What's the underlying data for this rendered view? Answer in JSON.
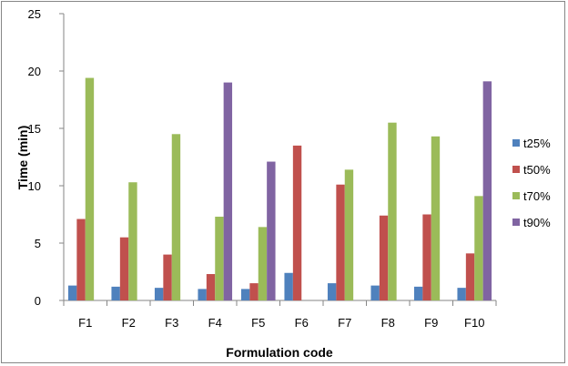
{
  "chart_data": {
    "type": "bar",
    "title": "",
    "xlabel": "Formulation code",
    "ylabel": "Time (min)",
    "ylim": [
      0,
      25
    ],
    "yticks": [
      0,
      5,
      10,
      15,
      20,
      25
    ],
    "grid": false,
    "legend_position": "right",
    "categories": [
      "F1",
      "F2",
      "F3",
      "F4",
      "F5",
      "F6",
      "F7",
      "F8",
      "F9",
      "F10"
    ],
    "series": [
      {
        "name": "t25%",
        "color": "#4F81BD",
        "values": [
          1.3,
          1.2,
          1.1,
          1.0,
          1.0,
          2.4,
          1.5,
          1.3,
          1.2,
          1.1
        ]
      },
      {
        "name": "t50%",
        "color": "#C0504D",
        "values": [
          7.1,
          5.5,
          4.0,
          2.3,
          1.5,
          13.5,
          10.1,
          7.4,
          7.5,
          4.1
        ]
      },
      {
        "name": "t70%",
        "color": "#9BBB59",
        "values": [
          19.4,
          10.3,
          14.5,
          7.3,
          6.4,
          0,
          11.4,
          15.5,
          14.3,
          9.1
        ]
      },
      {
        "name": "t90%",
        "color": "#8064A2",
        "values": [
          0,
          0,
          0,
          19.0,
          12.1,
          0,
          0,
          0,
          0,
          19.1
        ]
      }
    ]
  }
}
